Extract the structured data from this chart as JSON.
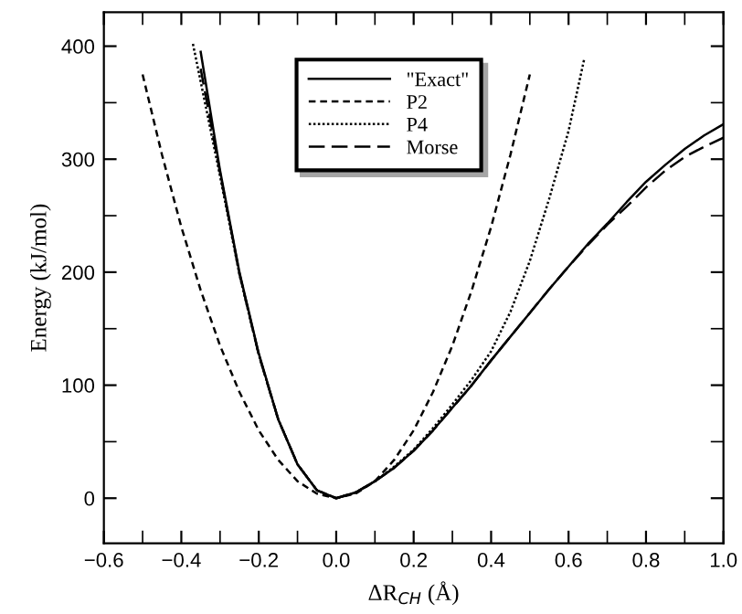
{
  "chart_data": {
    "type": "line",
    "xlabel": "ΔR$_{CH}$ (Å)",
    "ylabel": "Energy (kJ/mol)",
    "xlim": [
      -0.6,
      1.0
    ],
    "ylim": [
      -40,
      430
    ],
    "xticks": [
      {
        "value": -0.6,
        "label": "−0.6"
      },
      {
        "value": -0.4,
        "label": "−0.4"
      },
      {
        "value": -0.2,
        "label": "−0.2"
      },
      {
        "value": 0.0,
        "label": "0.0"
      },
      {
        "value": 0.2,
        "label": "0.2"
      },
      {
        "value": 0.4,
        "label": "0.4"
      },
      {
        "value": 0.6,
        "label": "0.6"
      },
      {
        "value": 0.8,
        "label": "0.8"
      },
      {
        "value": 1.0,
        "label": "1.0"
      }
    ],
    "yticks": [
      0,
      100,
      200,
      300,
      400
    ],
    "grid": false,
    "legend": "top",
    "marker": "none",
    "series": [
      {
        "name": "\"Exact\"",
        "color": "#000000",
        "line_style": "solid",
        "x": [
          -0.35,
          -0.3,
          -0.25,
          -0.2,
          -0.15,
          -0.1,
          -0.05,
          0,
          0.05,
          0.1,
          0.15,
          0.2,
          0.25,
          0.3,
          0.35,
          0.4,
          0.45,
          0.5,
          0.55,
          0.6,
          0.65,
          0.7,
          0.75,
          0.8,
          0.85,
          0.9,
          0.95,
          1.0
        ],
        "values": [
          395,
          290,
          200,
          128,
          70,
          30,
          7,
          0,
          5,
          15,
          27,
          42,
          60,
          80,
          100,
          122,
          143,
          164,
          185,
          205,
          225,
          243,
          262,
          280,
          295,
          309,
          321,
          331
        ]
      },
      {
        "name": "P2",
        "color": "#000000",
        "line_style": "dashed",
        "x": [
          -0.5,
          -0.45,
          -0.4,
          -0.35,
          -0.3,
          -0.25,
          -0.2,
          -0.15,
          -0.1,
          -0.05,
          0,
          0.05,
          0.1,
          0.15,
          0.2,
          0.25,
          0.3,
          0.35,
          0.4,
          0.45,
          0.5
        ],
        "values": [
          375,
          304,
          240,
          184,
          135,
          94,
          60,
          34,
          15,
          4,
          0,
          4,
          15,
          34,
          60,
          94,
          135,
          184,
          240,
          304,
          375
        ]
      },
      {
        "name": "P4",
        "color": "#000000",
        "line_style": "dotted",
        "x": [
          -0.37,
          -0.3,
          -0.25,
          -0.2,
          -0.15,
          -0.1,
          -0.05,
          0,
          0.05,
          0.1,
          0.15,
          0.2,
          0.25,
          0.3,
          0.35,
          0.4,
          0.45,
          0.5,
          0.55,
          0.6,
          0.64
        ],
        "values": [
          402,
          285,
          198,
          127,
          70,
          30,
          7,
          0,
          5,
          15,
          28,
          43,
          62,
          83,
          105,
          130,
          165,
          210,
          265,
          325,
          388
        ]
      },
      {
        "name": "Morse",
        "color": "#000000",
        "line_style": "dashed",
        "x": [
          -0.35,
          -0.3,
          -0.25,
          -0.2,
          -0.15,
          -0.1,
          -0.05,
          0,
          0.05,
          0.1,
          0.15,
          0.2,
          0.25,
          0.3,
          0.35,
          0.4,
          0.45,
          0.5,
          0.55,
          0.6,
          0.65,
          0.7,
          0.75,
          0.8,
          0.85,
          0.9,
          0.95,
          1.0
        ],
        "values": [
          380,
          288,
          199,
          127,
          70,
          30,
          7,
          0,
          5,
          15,
          27,
          42,
          60,
          80,
          100,
          122,
          143,
          164,
          185,
          205,
          224,
          242,
          258,
          275,
          290,
          302,
          311,
          319
        ]
      }
    ]
  }
}
